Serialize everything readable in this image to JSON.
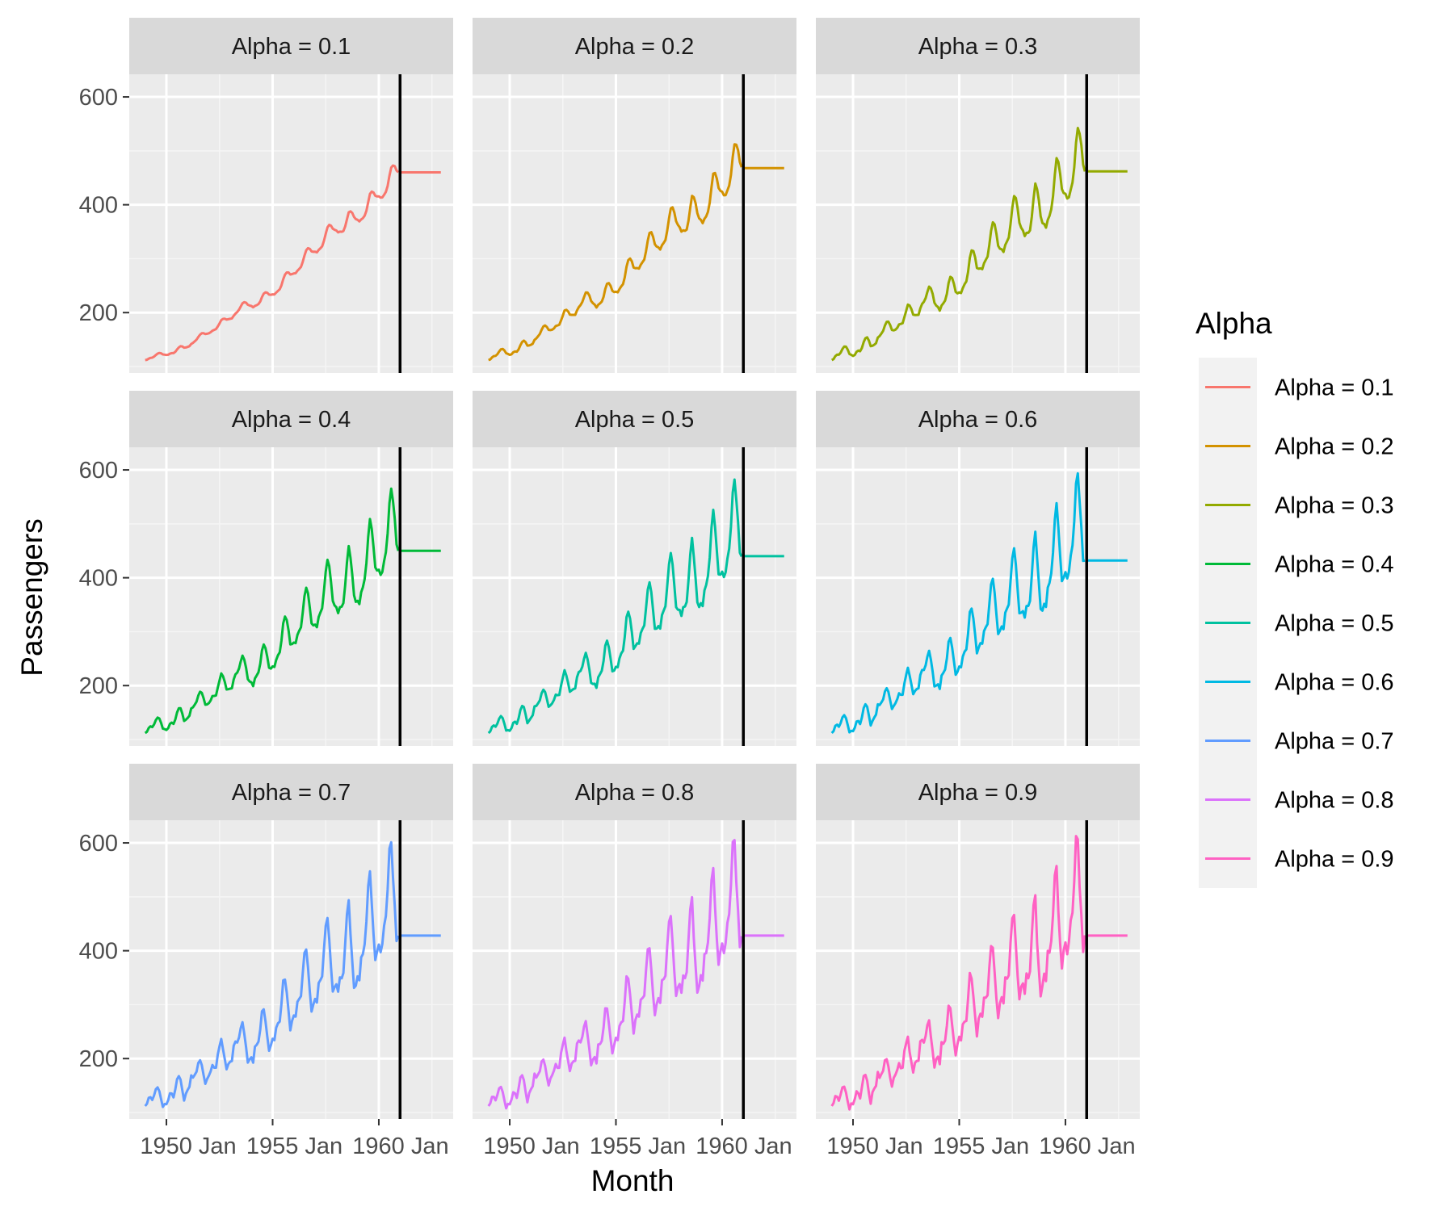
{
  "chart_data": {
    "type": "line",
    "xlabel": "Month",
    "ylabel": "Passengers",
    "x_tick_labels": [
      "1950 Jan",
      "1955 Jan",
      "1960 Jan"
    ],
    "y_ticks": [
      200,
      400,
      600
    ],
    "xlim": [
      1948.25,
      1963.5
    ],
    "ylim": [
      88,
      642
    ],
    "forecast_origin_line": 1961.0,
    "forecast_end": 1962.92,
    "grid": true,
    "legend": {
      "title": "Alpha",
      "position": "right",
      "entries": [
        "Alpha =  0.1",
        "Alpha =  0.2",
        "Alpha =  0.3",
        "Alpha =  0.4",
        "Alpha =  0.5",
        "Alpha =  0.6",
        "Alpha =  0.7",
        "Alpha =  0.8",
        "Alpha =  0.9"
      ]
    },
    "observed_passengers": {
      "start": "1949 Jan",
      "frequency": "monthly",
      "values": [
        112,
        118,
        132,
        129,
        121,
        135,
        148,
        148,
        136,
        119,
        104,
        118,
        115,
        126,
        141,
        135,
        125,
        149,
        170,
        170,
        158,
        133,
        114,
        140,
        145,
        150,
        178,
        163,
        172,
        178,
        199,
        199,
        184,
        162,
        146,
        166,
        171,
        180,
        193,
        181,
        183,
        218,
        230,
        242,
        209,
        191,
        172,
        194,
        196,
        196,
        236,
        235,
        229,
        243,
        264,
        272,
        237,
        211,
        180,
        201,
        204,
        188,
        235,
        227,
        234,
        264,
        302,
        293,
        259,
        229,
        203,
        229,
        242,
        233,
        267,
        269,
        270,
        315,
        364,
        347,
        312,
        274,
        237,
        278,
        284,
        277,
        317,
        313,
        318,
        374,
        413,
        405,
        355,
        306,
        271,
        306,
        315,
        301,
        356,
        348,
        355,
        422,
        465,
        467,
        404,
        347,
        305,
        336,
        340,
        318,
        362,
        348,
        363,
        435,
        491,
        505,
        404,
        359,
        310,
        337,
        360,
        342,
        406,
        396,
        420,
        472,
        548,
        559,
        463,
        407,
        362,
        405,
        417,
        391,
        419,
        461,
        472,
        535,
        622,
        606,
        508,
        461,
        390,
        432
      ]
    },
    "panels": [
      {
        "strip": "Alpha =  0.1",
        "alpha": 0.1,
        "color": "#F8766D",
        "forecast": 460
      },
      {
        "strip": "Alpha =  0.2",
        "alpha": 0.2,
        "color": "#D39200",
        "forecast": 468
      },
      {
        "strip": "Alpha =  0.3",
        "alpha": 0.3,
        "color": "#93AA00",
        "forecast": 462
      },
      {
        "strip": "Alpha =  0.4",
        "alpha": 0.4,
        "color": "#00BA38",
        "forecast": 450
      },
      {
        "strip": "Alpha =  0.5",
        "alpha": 0.5,
        "color": "#00C19F",
        "forecast": 440
      },
      {
        "strip": "Alpha =  0.6",
        "alpha": 0.6,
        "color": "#00B9E3",
        "forecast": 432
      },
      {
        "strip": "Alpha =  0.7",
        "alpha": 0.7,
        "color": "#619CFF",
        "forecast": 428
      },
      {
        "strip": "Alpha =  0.8",
        "alpha": 0.8,
        "color": "#DB72FB",
        "forecast": 428
      },
      {
        "strip": "Alpha =  0.9",
        "alpha": 0.9,
        "color": "#FF61C3",
        "forecast": 428
      }
    ]
  }
}
